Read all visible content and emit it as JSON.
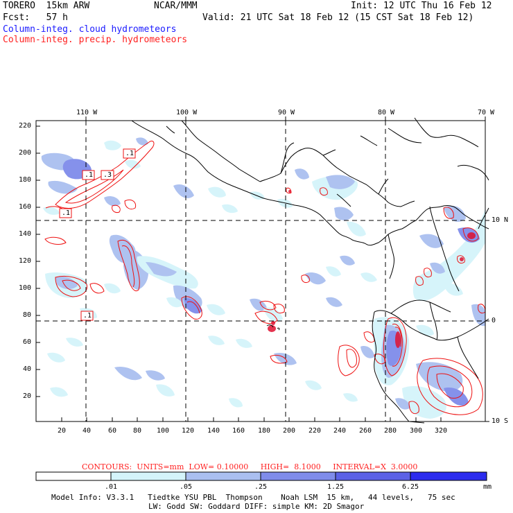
{
  "header": {
    "model": "TORERO  15km ARW",
    "org": "NCAR/MMM",
    "init": "Init: 12 UTC Thu 16 Feb 12",
    "fcst": "Fcst:   57 h",
    "valid": "Valid: 21 UTC Sat 18 Feb 12 (15 CST Sat 18 Feb 12)",
    "field1": "Column-integ. cloud hydrometeors",
    "field2": "Column-integ. precip. hydrometeors"
  },
  "map": {
    "lon_labels": [
      "110 W",
      "100 W",
      "90 W",
      "80 W",
      "70 W"
    ],
    "lat_labels": [
      "10 N",
      "0",
      "10 S"
    ],
    "y_ticks": [
      "220",
      "200",
      "180",
      "160",
      "140",
      "120",
      "100",
      "80",
      "60",
      "40",
      "20"
    ],
    "x_ticks": [
      "20",
      "40",
      "60",
      "80",
      "100",
      "120",
      "140",
      "160",
      "180",
      "200",
      "220",
      "240",
      "260",
      "280",
      "300",
      "320"
    ],
    "contour_labels": [
      ".1",
      ".1",
      ".3",
      ".1",
      ".1"
    ]
  },
  "contour_info": {
    "text": "CONTOURS:  UNITS=mm  LOW= 0.10000     HIGH=  8.1000     INTERVAL=X  3.0000"
  },
  "colorbar": {
    "labels": [
      ".01",
      ".05",
      ".25",
      "1.25",
      "6.25"
    ],
    "unit": "mm",
    "colors": [
      "#ffffff",
      "#d4f4fa",
      "#aabff0",
      "#7f8cea",
      "#5b62e6",
      "#2c2cee"
    ]
  },
  "footer": {
    "line1": "Model Info: V3.3.1   Tiedtke YSU PBL  Thompson    Noah LSM  15 km,   44 levels,   75 sec",
    "line2": "LW: Godd SW: Goddard DIFF: simple KM: 2D Smagor"
  }
}
